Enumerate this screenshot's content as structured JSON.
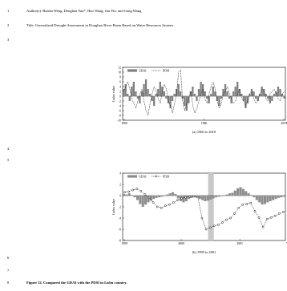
{
  "document": {
    "lines": [
      {
        "number": "1",
        "text": "Author(s): Baisha Weng, Denghua Yan*, Hao Wang, Jun Yin, and Gang Wang"
      },
      {
        "number": "2",
        "text": "Title: Generalized Drought Assessment in Dongliao River Basin Based on Water Resources System"
      },
      {
        "number": "3",
        "text": ""
      },
      {
        "number": "4",
        "text": ""
      },
      {
        "number": "5",
        "text": ""
      },
      {
        "number": "6",
        "text": ""
      },
      {
        "number": "7",
        "text": ""
      },
      {
        "number": "8",
        "text": "Figure 12. Compared the GDAI with the PDSI in Lishu country."
      }
    ]
  },
  "chart_data": [
    {
      "type": "bar",
      "caption": "(a) 1960 to 2010",
      "ylabel": "Index value",
      "ylim": [
        -10,
        12
      ],
      "yticks": [
        -10,
        -8,
        -6,
        -4,
        -2,
        0,
        2,
        4,
        6,
        8,
        10,
        12
      ],
      "xticks": [
        "1960",
        "1986",
        "2010"
      ],
      "x_trailing_label": "Ye",
      "legend": [
        "GDAI",
        "PDSI"
      ],
      "legend_placement": "top-left",
      "series": [
        {
          "name": "GDAI",
          "style": "bar",
          "color": "#7f7f7f",
          "values": [
            3,
            5,
            1,
            -2,
            4,
            6,
            2,
            -1,
            -3,
            2,
            5,
            7,
            3,
            1,
            -2,
            -4,
            1,
            3,
            6,
            4,
            2,
            -1,
            -3,
            -5,
            -2,
            1,
            3,
            5,
            2,
            -1,
            -4,
            -6,
            -3,
            2,
            4,
            1,
            -2,
            3,
            6,
            5,
            2,
            -1,
            -3,
            1,
            4,
            2,
            -2,
            -4,
            -1,
            3,
            5,
            2,
            -1,
            -3,
            2,
            4,
            6,
            3,
            1,
            -2,
            -5,
            -3,
            1,
            3,
            2,
            -1,
            -2,
            1,
            4,
            3,
            1,
            -1,
            -3,
            -2,
            1,
            2,
            4,
            3,
            1,
            -1
          ]
        },
        {
          "name": "PDSI",
          "style": "dashed",
          "color": "#000000",
          "values": [
            2,
            4,
            6,
            3,
            -1,
            -3,
            -5,
            -2,
            1,
            3,
            -2,
            -6,
            -8,
            -3,
            1,
            4,
            2,
            -1,
            -3,
            2,
            5,
            3,
            -2,
            -4,
            -7,
            -3,
            1,
            10,
            11,
            -2,
            -6,
            -3,
            -1,
            2,
            -4,
            -7,
            -5,
            -2,
            1,
            3,
            -1,
            -3,
            1,
            4,
            6,
            3,
            -2,
            -5,
            -3,
            1,
            2,
            4,
            1,
            -1,
            -3,
            -2,
            1,
            3,
            -1,
            -2,
            -4,
            -2,
            1,
            2,
            -1,
            -3,
            -2,
            1,
            3,
            2,
            -1,
            -2,
            1,
            2,
            3,
            1,
            -1,
            -2,
            1,
            2
          ]
        }
      ]
    },
    {
      "type": "bar",
      "caption": "(b) 1999 to 2001",
      "ylabel": "Index value",
      "ylim": [
        -8,
        4
      ],
      "yticks": [
        -8,
        -6,
        -4,
        -2,
        0,
        2,
        4
      ],
      "xticks": [
        "1999",
        "2000",
        "2001"
      ],
      "x_trailing_label": "Ye",
      "legend": [
        "GDAI",
        "PDSI"
      ],
      "legend_placement": "top-left",
      "highlight_band": "mid-2000",
      "series": [
        {
          "name": "GDAI",
          "style": "bar",
          "color": "#8c8c8c",
          "values": [
            0.3,
            0.2,
            0.4,
            0.1,
            -0.3,
            -0.8,
            -1.5,
            -2.0,
            -1.6,
            -1.2,
            -0.9,
            -0.6,
            -0.4,
            -0.3,
            -0.2,
            -0.1,
            0.2,
            0.4,
            0.6,
            0.3,
            -0.5,
            -1.0,
            -1.2,
            -1.0,
            -0.6,
            -0.4,
            -0.3,
            -0.4,
            -0.6,
            -0.8,
            -1.0,
            -0.9,
            -0.7,
            -0.5,
            -0.3,
            -0.2,
            -0.1,
            0.1,
            0.2,
            0.4,
            0.5,
            0.9,
            1.3,
            1.5,
            1.2,
            0.8,
            0.4,
            0.1,
            -0.3,
            -0.8,
            -1.2,
            -1.6,
            -1.5,
            -1.2,
            -1.0,
            -0.8,
            -0.6,
            -0.4,
            -0.3,
            -0.2
          ]
        },
        {
          "name": "PDSI",
          "style": "dashed-circle",
          "color": "#000000",
          "values": [
            0.6,
            0.7,
            1.0,
            1.2,
            0.8,
            0.2,
            -0.4,
            -1.2,
            -2.0,
            -2.2,
            -1.8,
            -1.6,
            -1.2,
            -0.8,
            -0.5,
            -0.3,
            -0.2,
            -0.1,
            -0.3,
            -4.0,
            -6.0,
            -5.7,
            -5.4,
            -5.2,
            -4.8,
            -4.3,
            -4.0,
            -3.2,
            -2.2,
            -1.6,
            -1.5,
            -1.3,
            -2.8,
            -3.9,
            -5.6,
            -4.2,
            -3.9,
            -3.6,
            -3.2,
            -2.9
          ]
        }
      ]
    }
  ]
}
